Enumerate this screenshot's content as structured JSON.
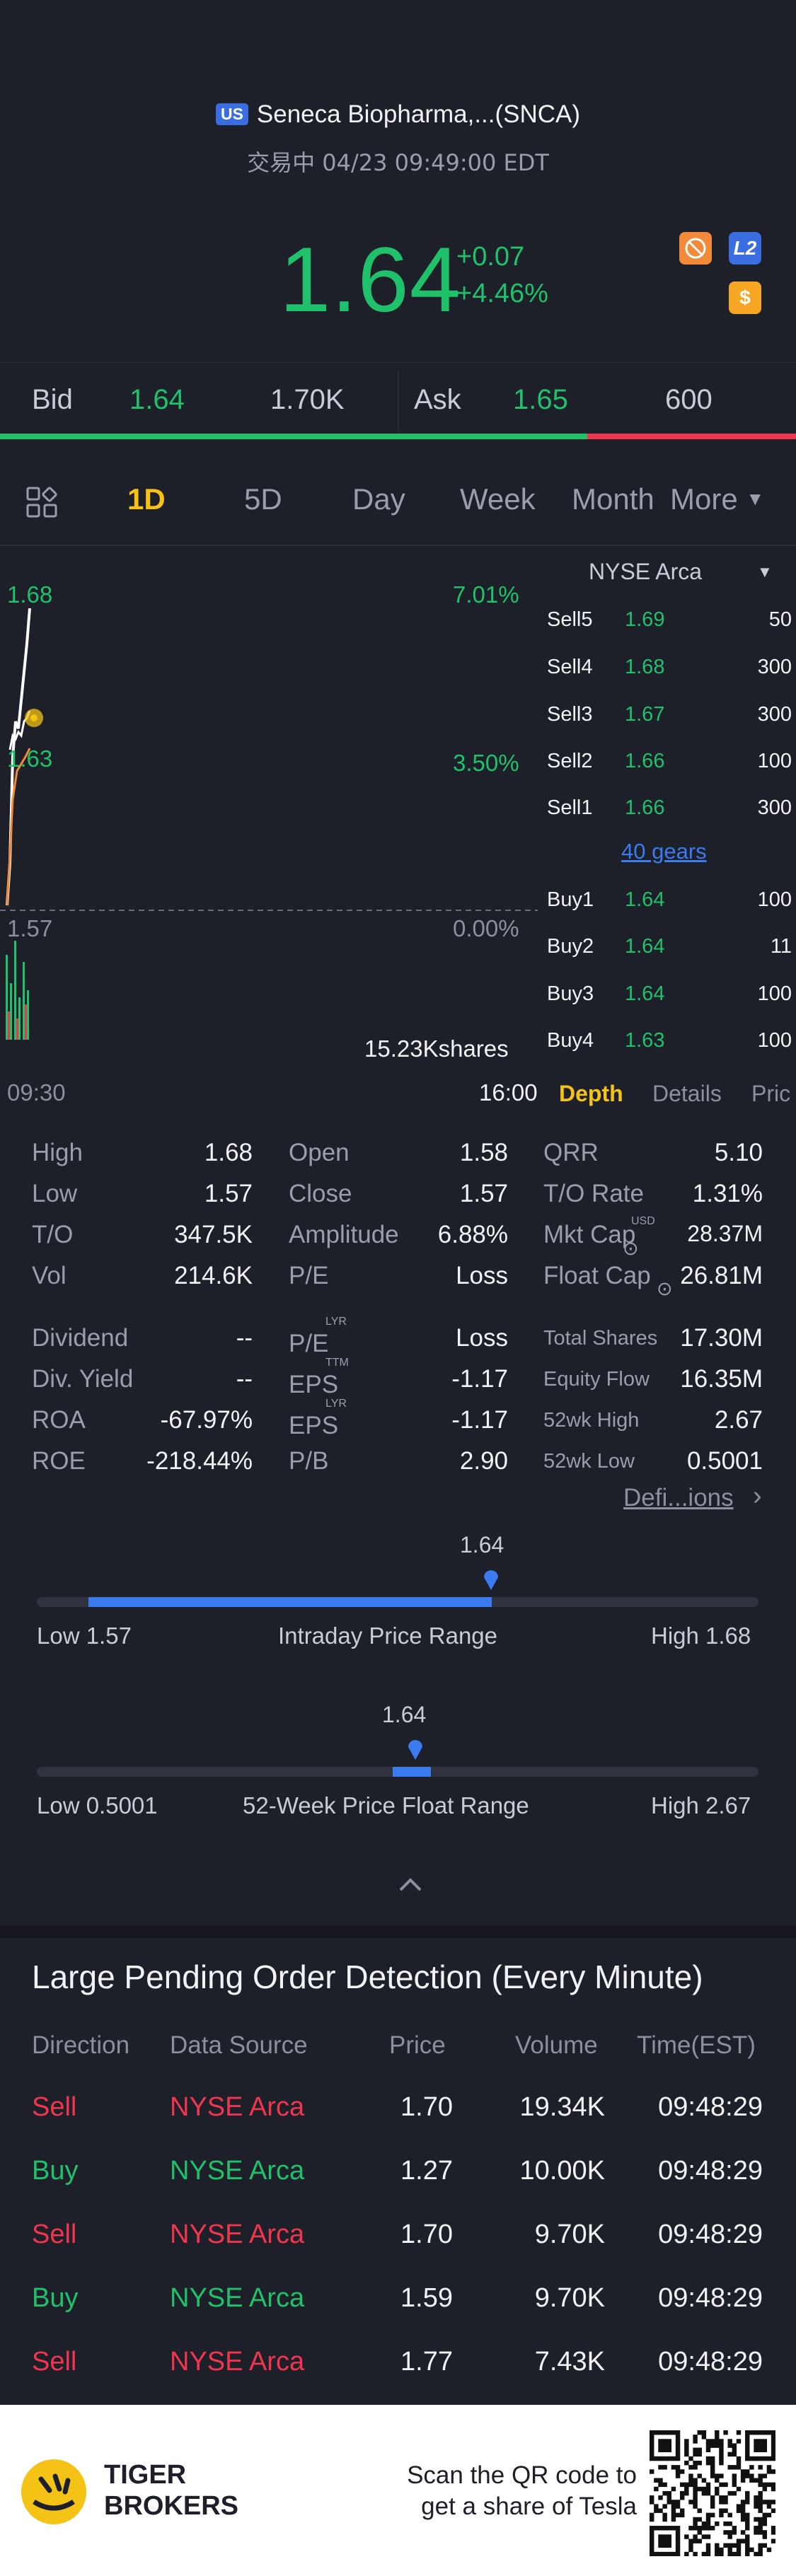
{
  "header": {
    "market_badge": "US",
    "title": "Seneca Biopharma,...(SNCA)",
    "status_line": "交易中 04/23 09:49:00 EDT",
    "price": "1.64",
    "change": "+0.07",
    "change_pct": "+4.46%",
    "icons": [
      "block-trade-icon",
      "level2-icon",
      "dollar-icon"
    ],
    "level2_label": "L2",
    "dollar_label": "$"
  },
  "bidask": {
    "bid_label": "Bid",
    "bid_price": "1.64",
    "bid_size": "1.70K",
    "ask_label": "Ask",
    "ask_price": "1.65",
    "ask_size": "600",
    "bid_ratio": 0.74
  },
  "tabs": {
    "items": [
      "1D",
      "5D",
      "Day",
      "Week",
      "Month"
    ],
    "active": "1D",
    "more": "More"
  },
  "chart": {
    "y_high": "1.68",
    "y_mid": "1.63",
    "y_low": "1.57",
    "pct_high": "7.01%",
    "pct_mid": "3.50%",
    "pct_low": "0.00%",
    "volume_label": "15.23Kshares",
    "time_start": "09:30",
    "time_end": "16:00"
  },
  "orderbook": {
    "exchange": "NYSE Arca",
    "sells": [
      {
        "label": "Sell5",
        "price": "1.69",
        "qty": "50"
      },
      {
        "label": "Sell4",
        "price": "1.68",
        "qty": "300"
      },
      {
        "label": "Sell3",
        "price": "1.67",
        "qty": "300"
      },
      {
        "label": "Sell2",
        "price": "1.66",
        "qty": "100"
      },
      {
        "label": "Sell1",
        "price": "1.66",
        "qty": "300"
      }
    ],
    "gears": "40 gears",
    "buys": [
      {
        "label": "Buy1",
        "price": "1.64",
        "qty": "100"
      },
      {
        "label": "Buy2",
        "price": "1.64",
        "qty": "11"
      },
      {
        "label": "Buy3",
        "price": "1.64",
        "qty": "100"
      },
      {
        "label": "Buy4",
        "price": "1.63",
        "qty": "100"
      }
    ],
    "tabs": [
      "Depth",
      "Details",
      "Pric"
    ]
  },
  "stats": {
    "col1": [
      {
        "label": "High",
        "value": "1.68"
      },
      {
        "label": "Low",
        "value": "1.57"
      },
      {
        "label": "T/O",
        "value": "347.5K"
      },
      {
        "label": "Vol",
        "value": "214.6K"
      }
    ],
    "col2": [
      {
        "label": "Open",
        "value": "1.58"
      },
      {
        "label": "Close",
        "value": "1.57"
      },
      {
        "label": "Amplitude",
        "value": "6.88%"
      },
      {
        "label": "P/E",
        "value": "Loss"
      }
    ],
    "col3": [
      {
        "label": "QRR",
        "value": "5.10"
      },
      {
        "label": "T/O Rate",
        "value": "1.31%"
      },
      {
        "label": "Mkt Cap",
        "value": "28.37M"
      },
      {
        "label": "Float Cap",
        "value": "26.81M"
      }
    ],
    "col1b": [
      {
        "label": "Dividend",
        "value": "--"
      },
      {
        "label": "Div. Yield",
        "value": "--"
      },
      {
        "label": "ROA",
        "value": "-67.97%"
      },
      {
        "label": "ROE",
        "value": "-218.44%"
      }
    ],
    "col2b": [
      {
        "label": "P/E",
        "sup": "LYR",
        "value": "Loss"
      },
      {
        "label": "EPS",
        "sup": "TTM",
        "value": "-1.17"
      },
      {
        "label": "EPS",
        "sup": "LYR",
        "value": "-1.17"
      },
      {
        "label": "P/B",
        "sup": "",
        "value": "2.90"
      }
    ],
    "col3b": [
      {
        "label": "Total Shares",
        "value": "17.30M"
      },
      {
        "label": "Equity Flow",
        "value": "16.35M"
      },
      {
        "label": "52wk High",
        "value": "2.67"
      },
      {
        "label": "52wk Low",
        "value": "0.5001"
      }
    ],
    "mkt_cap_unit": "USD",
    "definitions_link": "Defi...ions"
  },
  "intraday_range": {
    "current": "1.64",
    "low_label": "Low 1.57",
    "title": "Intraday Price Range",
    "high_label": "High 1.68",
    "fill_start": 0.0,
    "fill_end": 0.636
  },
  "week52_range": {
    "current": "1.64",
    "low_label": "Low 0.5001",
    "title": "52-Week Price Float Range",
    "high_label": "High 2.67",
    "position": 0.525
  },
  "pending": {
    "title": "Large Pending Order Detection (Every Minute)",
    "headers": [
      "Direction",
      "Data Source",
      "Price",
      "Volume",
      "Time(EST)"
    ],
    "rows": [
      {
        "dir": "Sell",
        "source": "NYSE Arca",
        "price": "1.70",
        "volume": "19.34K",
        "time": "09:48:29"
      },
      {
        "dir": "Buy",
        "source": "NYSE Arca",
        "price": "1.27",
        "volume": "10.00K",
        "time": "09:48:29"
      },
      {
        "dir": "Sell",
        "source": "NYSE Arca",
        "price": "1.70",
        "volume": "9.70K",
        "time": "09:48:29"
      },
      {
        "dir": "Buy",
        "source": "NYSE Arca",
        "price": "1.59",
        "volume": "9.70K",
        "time": "09:48:29"
      },
      {
        "dir": "Sell",
        "source": "NYSE Arca",
        "price": "1.77",
        "volume": "7.43K",
        "time": "09:48:29"
      }
    ]
  },
  "footer": {
    "brand_line1": "TIGER",
    "brand_line2": "BROKERS",
    "cta_line1": "Scan the QR code to",
    "cta_line2": "get a share of Tesla"
  },
  "colors": {
    "up": "#1fc16a",
    "down": "#f0364f",
    "accent": "#f5c316",
    "link": "#3a7bf0"
  }
}
